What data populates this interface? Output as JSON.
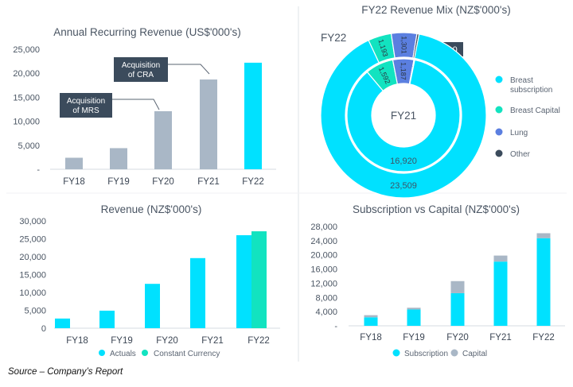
{
  "colors": {
    "cyan": "#00E1FF",
    "teal": "#12E3C0",
    "gray": "#A9B7C6",
    "dark": "#3B4B5C",
    "lung": "#5B7FE0",
    "axis": "#d6dbe0"
  },
  "source": "Source – Company’s Report",
  "chart_data": [
    {
      "type": "bar",
      "title": "Annual Recurring Revenue (US$'000's)",
      "categories": [
        "FY18",
        "FY19",
        "FY20",
        "FY21",
        "FY22"
      ],
      "values": [
        2400,
        4400,
        12100,
        18700,
        22200
      ],
      "highlight": "FY22",
      "yticks": [
        "-",
        "5,000",
        "10,000",
        "15,000",
        "20,000",
        "25,000"
      ],
      "ylim": [
        0,
        25000
      ],
      "annotations": [
        {
          "category": "FY20",
          "text": [
            "Acquisition",
            "of MRS"
          ]
        },
        {
          "category": "FY21",
          "text": [
            "Acquisition",
            "of CRA"
          ]
        }
      ]
    },
    {
      "type": "pie",
      "title": "FY22 Revenue Mix (NZ$'000's)",
      "legend": [
        "Breast subscription",
        "Breast Capital",
        "Lung",
        "Other"
      ],
      "legend_lines": [
        [
          "Breast",
          "subscription"
        ],
        [
          "Breast Capital"
        ],
        [
          "Lung"
        ],
        [
          "Other"
        ]
      ],
      "rings": [
        {
          "name": "FY22",
          "values": [
            23509,
            1193,
            1301,
            110
          ],
          "labels": [
            "23,509",
            "1,193",
            "1,301",
            "110"
          ]
        },
        {
          "name": "FY21",
          "values": [
            16920,
            1592,
            1187,
            48
          ],
          "labels": [
            "16,920",
            "1,592",
            "1,187",
            "48"
          ]
        }
      ]
    },
    {
      "type": "bar",
      "title": "Revenue (NZ$'000's)",
      "categories": [
        "FY18",
        "FY19",
        "FY20",
        "FY21",
        "FY22"
      ],
      "series": [
        {
          "name": "Actuals",
          "values": [
            2700,
            4900,
            12400,
            19600,
            26000
          ]
        },
        {
          "name": "Constant Currency",
          "values": [
            null,
            null,
            null,
            null,
            27100
          ]
        }
      ],
      "yticks": [
        "0",
        "5,000",
        "10,000",
        "15,000",
        "20,000",
        "25,000",
        "30,000"
      ],
      "ylim": [
        0,
        30000
      ],
      "legend_position": "bottom"
    },
    {
      "type": "bar",
      "stacked": true,
      "title": "Subscription vs Capital (NZ$'000's)",
      "categories": [
        "FY18",
        "FY19",
        "FY20",
        "FY21",
        "FY22"
      ],
      "series": [
        {
          "name": "Subscription",
          "values": [
            2400,
            4600,
            9200,
            18100,
            24700
          ]
        },
        {
          "name": "Capital",
          "values": [
            600,
            500,
            3400,
            1700,
            1400
          ]
        }
      ],
      "yticks": [
        "-",
        "4,000",
        "8,000",
        "12,000",
        "16,000",
        "20,000",
        "24,000",
        "28,000"
      ],
      "ylim": [
        0,
        28000
      ],
      "legend_position": "bottom"
    }
  ]
}
